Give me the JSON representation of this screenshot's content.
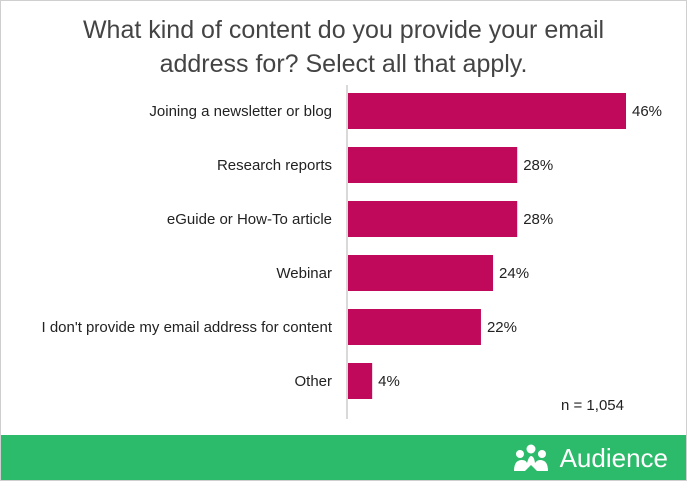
{
  "colors": {
    "bar": "#c0095b",
    "footer": "#2bbb6b",
    "title": "#444444",
    "axis": "#b3b3b3"
  },
  "title": "What kind of content do you provide your email address for? Select all that apply.",
  "sample_note": "n = 1,054",
  "brand": {
    "name": "Audience",
    "icon": "crowd-bubble-icon"
  },
  "chart_data": {
    "type": "bar",
    "orientation": "horizontal",
    "title": "What kind of content do you provide your email address for? Select all that apply.",
    "categories": [
      "Joining a newsletter or blog",
      "Research reports",
      "eGuide or How-To article",
      "Webinar",
      "I don't provide my email address for content",
      "Other"
    ],
    "values": [
      46,
      28,
      28,
      24,
      22,
      4
    ],
    "value_labels": [
      "46%",
      "28%",
      "28%",
      "24%",
      "22%",
      "4%"
    ],
    "unit": "%",
    "xlim": [
      0,
      46
    ],
    "grid": false
  }
}
